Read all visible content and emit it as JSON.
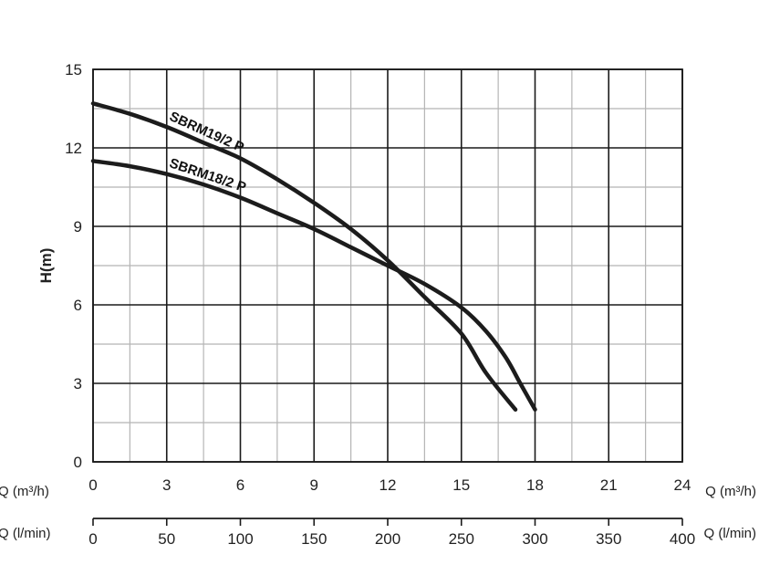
{
  "chart_data": {
    "type": "line",
    "ylabel": "H(m)",
    "xlabel_top": "Q (m³/h)",
    "xlabel_bottom": "Q (l/min)",
    "ylim": [
      0,
      15
    ],
    "xlim": [
      0,
      24
    ],
    "y_ticks": [
      "0",
      "3",
      "6",
      "9",
      "12",
      "15"
    ],
    "x_ticks": [
      "0",
      "3",
      "6",
      "9",
      "12",
      "15",
      "18",
      "21",
      "24"
    ],
    "x2_ticks": [
      "0",
      "50",
      "100",
      "150",
      "200",
      "250",
      "300",
      "350",
      "400"
    ],
    "grid": true,
    "series": [
      {
        "name": "SBRM19/2 P",
        "points": [
          [
            0,
            13.7
          ],
          [
            1.5,
            13.3
          ],
          [
            3,
            12.8
          ],
          [
            4.5,
            12.2
          ],
          [
            6,
            11.6
          ],
          [
            7.5,
            10.8
          ],
          [
            9,
            9.9
          ],
          [
            10.5,
            8.9
          ],
          [
            12,
            7.7
          ],
          [
            13.5,
            6.3
          ],
          [
            15,
            4.9
          ],
          [
            16,
            3.4
          ],
          [
            17.2,
            2.0
          ]
        ],
        "label": "SBRM19/2 P"
      },
      {
        "name": "SBRM18/2 P",
        "points": [
          [
            0,
            11.5
          ],
          [
            1.5,
            11.3
          ],
          [
            3,
            11.0
          ],
          [
            4.5,
            10.6
          ],
          [
            6,
            10.1
          ],
          [
            7.5,
            9.5
          ],
          [
            9,
            8.9
          ],
          [
            10.5,
            8.2
          ],
          [
            12,
            7.5
          ],
          [
            13.5,
            6.8
          ],
          [
            15,
            5.9
          ],
          [
            16,
            5.0
          ],
          [
            16.8,
            4.0
          ],
          [
            17.4,
            3.0
          ],
          [
            18,
            2.0
          ]
        ],
        "label": "SBRM18/2 P"
      }
    ]
  }
}
